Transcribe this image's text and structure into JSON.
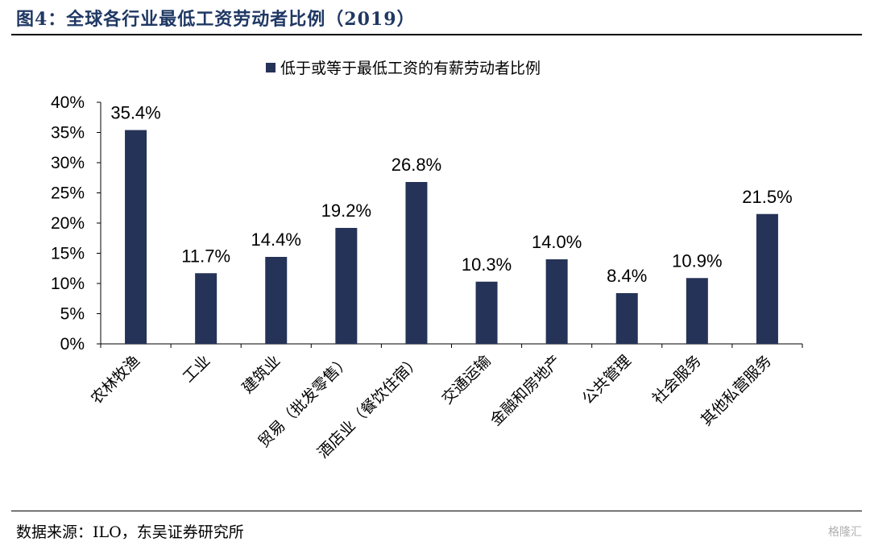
{
  "figure": {
    "title": "图4：全球各行业最低工资劳动者比例（2019）",
    "source": "数据来源：ILO，东吴证券研究所",
    "watermark": "格隆汇"
  },
  "chart_data": {
    "type": "bar",
    "title": "",
    "xlabel": "",
    "ylabel": "",
    "ylim": [
      0,
      40
    ],
    "yticks": [
      "0%",
      "5%",
      "10%",
      "15%",
      "20%",
      "25%",
      "30%",
      "35%",
      "40%"
    ],
    "yticks_values": [
      0,
      5,
      10,
      15,
      20,
      25,
      30,
      35,
      40
    ],
    "grid": false,
    "legend_position": "top-center",
    "bar_color": "#263358",
    "categories": [
      "农林牧渔",
      "工业",
      "建筑业",
      "贸易（批发零售）",
      "酒店业（餐饮住宿）",
      "交通运输",
      "金融和房地产",
      "公共管理",
      "社会服务",
      "其他私营服务"
    ],
    "series": [
      {
        "name": "低于或等于最低工资的有薪劳动者比例",
        "values": [
          35.4,
          11.7,
          14.4,
          19.2,
          26.8,
          10.3,
          14.0,
          8.4,
          10.9,
          21.5
        ],
        "labels": [
          "35.4%",
          "11.7%",
          "14.4%",
          "19.2%",
          "26.8%",
          "10.3%",
          "14.0%",
          "8.4%",
          "10.9%",
          "21.5%"
        ]
      }
    ]
  }
}
